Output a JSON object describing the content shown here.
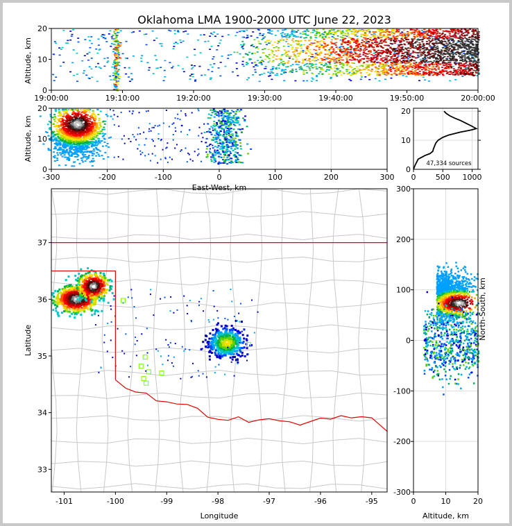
{
  "title": "Oklahoma LMA 1900-2000 UTC June 22, 2023",
  "colors": {
    "border": "#e00000",
    "county": "#c8c8c8",
    "profile": "#000000",
    "station": "#7cfc00"
  },
  "chart_data": [
    {
      "id": "time-height",
      "type": "heatmap",
      "title": "Oklahoma LMA 1900-2000 UTC June 22, 2023",
      "xlabel": "",
      "ylabel": "Altitude, km",
      "xtick_labels": [
        "19:00:00",
        "19:10:00",
        "19:20:00",
        "19:30:00",
        "19:40:00",
        "19:50:00",
        "20:00:00"
      ],
      "xlim_minutes": [
        0,
        60
      ],
      "ylim": [
        0,
        20
      ],
      "yticks": [
        0,
        10,
        20
      ]
    },
    {
      "id": "ew-altitude",
      "type": "heatmap",
      "xlabel": "East-West, km",
      "ylabel": "Altitude, km",
      "xlim": [
        -300,
        300
      ],
      "xticks": [
        -300,
        -200,
        -100,
        0,
        100,
        200,
        300
      ],
      "ylim": [
        0,
        20
      ],
      "yticks": [
        0,
        10,
        20
      ]
    },
    {
      "id": "source-profile",
      "type": "line",
      "annotation": "47,334 sources",
      "xlim": [
        0,
        1100
      ],
      "xticks": [
        0,
        500,
        1000
      ],
      "ylim": [
        0,
        21
      ],
      "yticks": [
        0,
        10,
        20
      ],
      "profile_x": [
        0,
        30,
        80,
        200,
        280,
        330,
        340,
        360,
        380,
        420,
        500,
        600,
        700,
        800,
        900,
        1000,
        1070,
        1000,
        900,
        800,
        700,
        620,
        560,
        520
      ],
      "profile_y": [
        0,
        1.5,
        3.5,
        4.8,
        5.4,
        6.2,
        7.0,
        8.0,
        9.0,
        10.0,
        11.0,
        11.8,
        12.3,
        12.8,
        13.2,
        13.6,
        14.0,
        14.8,
        15.8,
        16.8,
        17.6,
        18.4,
        19.2,
        20.0
      ]
    },
    {
      "id": "plan-view",
      "type": "heatmap",
      "xlabel": "Longitude",
      "ylabel": "Latitude",
      "xlim": [
        -101.25,
        -94.7
      ],
      "xticks": [
        -101,
        -100,
        -99,
        -98,
        -97,
        -96,
        -95
      ],
      "ylim": [
        32.6,
        37.95
      ],
      "yticks": [
        33,
        34,
        35,
        36,
        37
      ]
    },
    {
      "id": "ns-altitude",
      "type": "heatmap",
      "xlabel": "Altitude, km",
      "ylabel": "North-South, km",
      "xlim": [
        0,
        20
      ],
      "xticks": [
        0,
        10,
        20
      ],
      "ylim": [
        -300,
        300
      ],
      "yticks": [
        -300,
        -200,
        -100,
        0,
        100,
        200,
        300
      ]
    }
  ]
}
